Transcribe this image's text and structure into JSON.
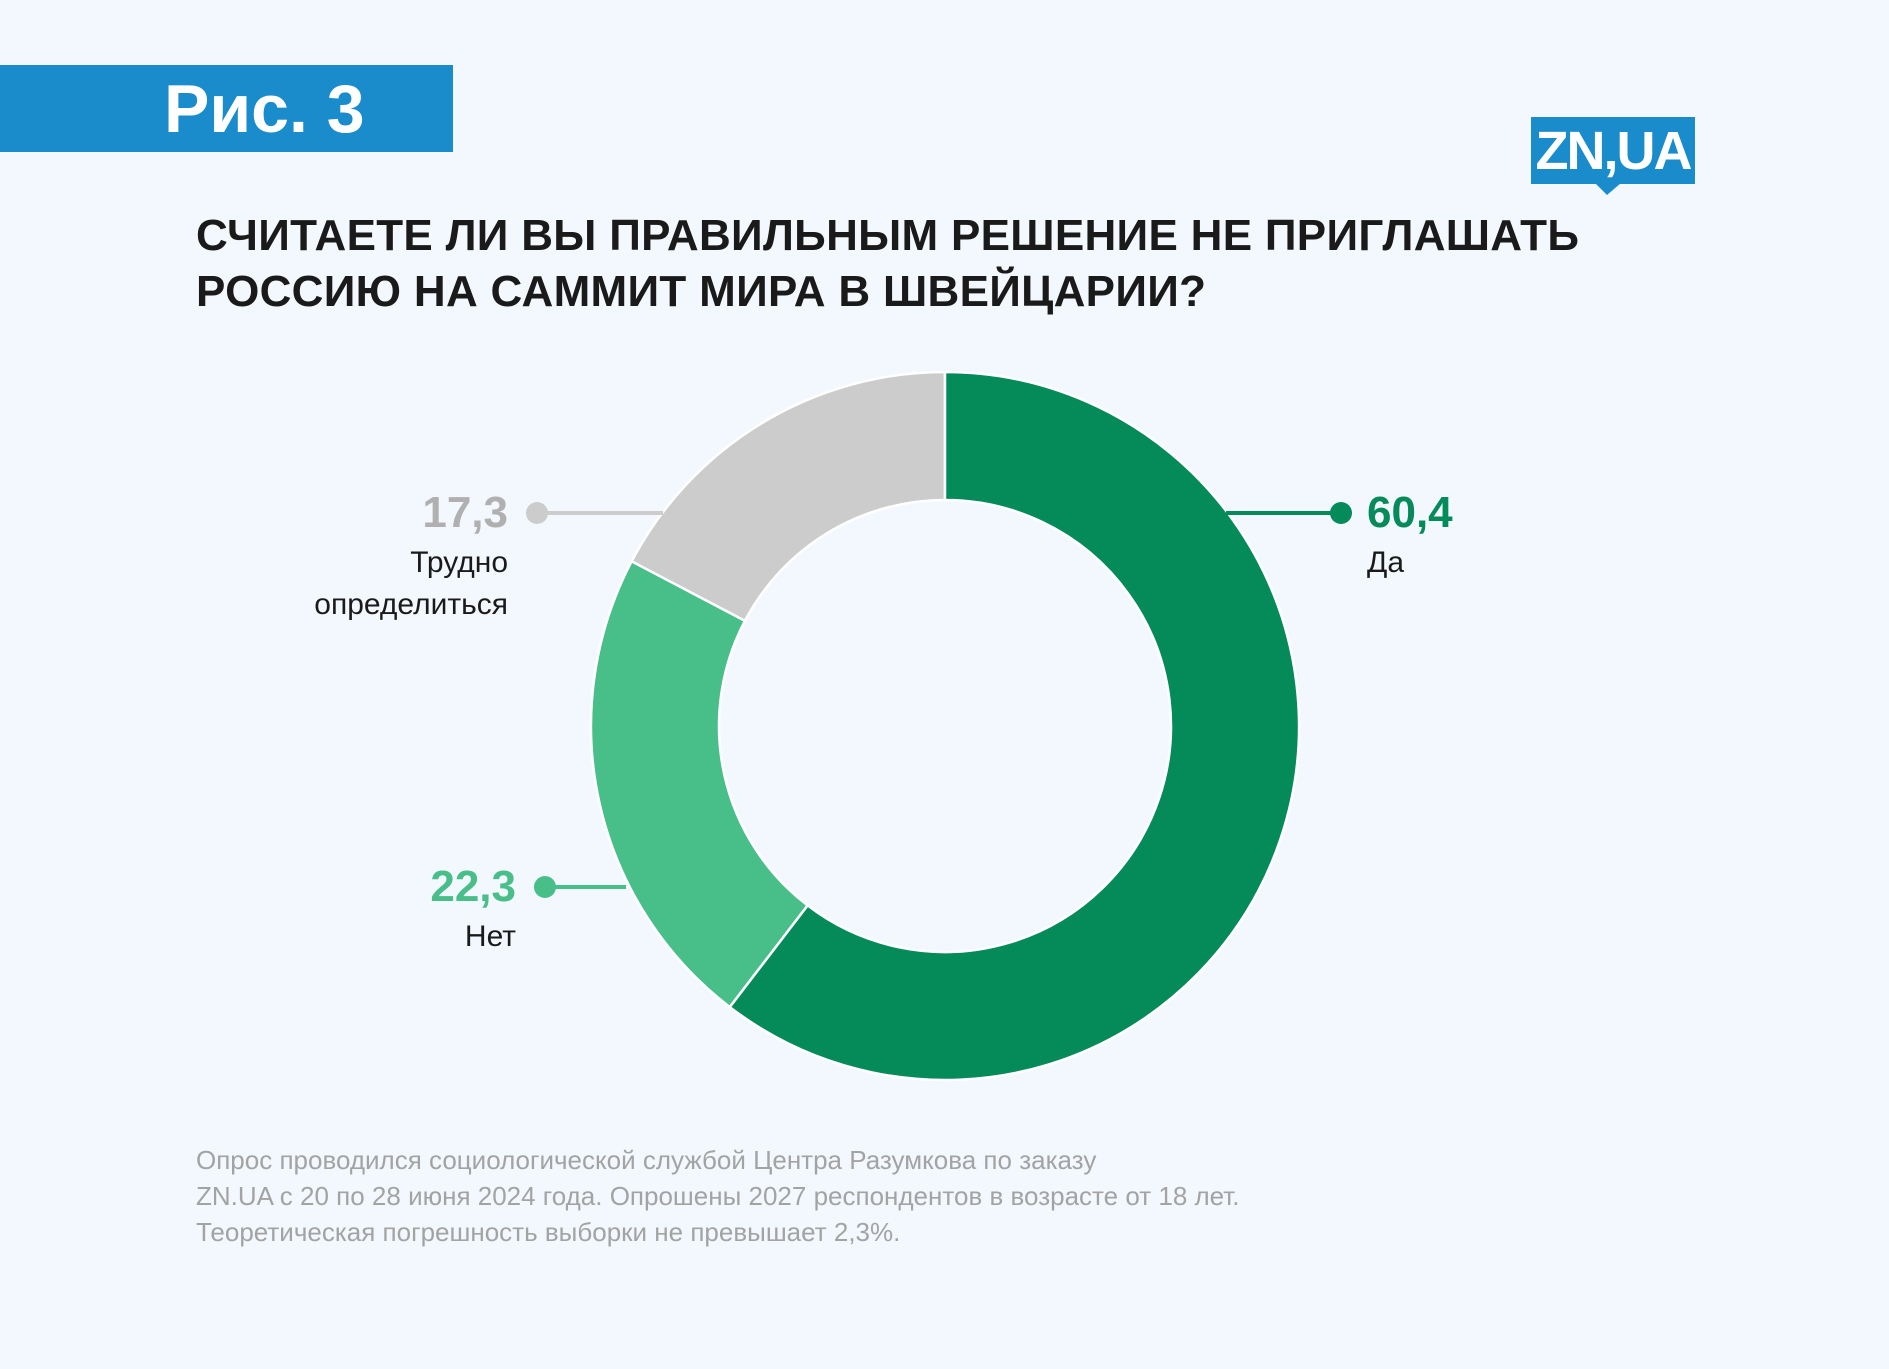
{
  "figure_label": "Рис. 3",
  "logo_text": "ZN,UA",
  "colors": {
    "accent": "#1a8ccc",
    "yes": "#058a5a",
    "no": "#48be88",
    "undecided": "#cccccc",
    "background": "#f3f8fe"
  },
  "chart_data": {
    "type": "pie",
    "donut": true,
    "title_lines": [
      "СЧИТАЕТЕ ЛИ ВЫ ПРАВИЛЬНЫМ РЕШЕНИЕ НЕ ПРИГЛАШАТЬ",
      "РОССИЮ НА САММИТ МИРА В ШВЕЙЦАРИИ?"
    ],
    "slices": [
      {
        "label": "Да",
        "value": 60.4,
        "value_text": "60,4",
        "color": "#058a5a"
      },
      {
        "label": "Нет",
        "value": 22.3,
        "value_text": "22,3",
        "color": "#48be88"
      },
      {
        "label_lines": [
          "Трудно",
          "определиться"
        ],
        "label": "Трудно определиться",
        "value": 17.3,
        "value_text": "17,3",
        "color": "#cccccc"
      }
    ]
  },
  "footer_lines": [
    "Опрос проводился социологической службой Центра Разумкова по заказу",
    "ZN.UA с 20 по 28 июня 2024 года. Опрошены 2027 респондентов в возрасте от 18 лет.",
    "Теоретическая погрешность выборки не превышает 2,3%."
  ]
}
